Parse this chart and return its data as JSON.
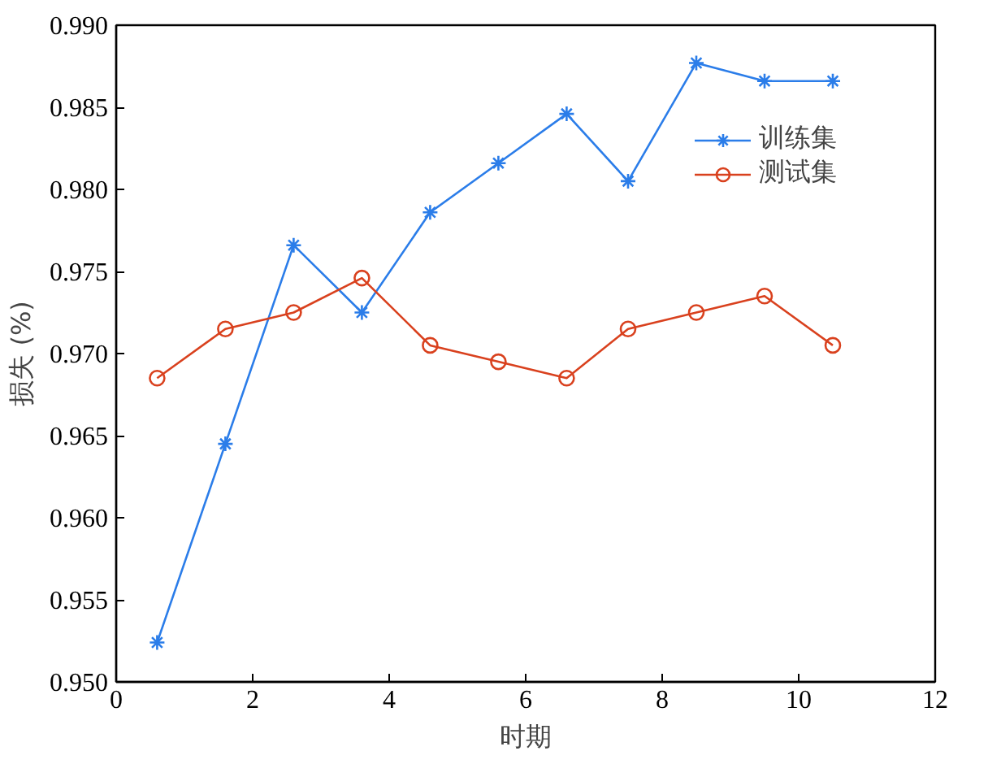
{
  "chart_data": {
    "type": "line",
    "xlabel": "时期",
    "ylabel": "损失 (%)",
    "x": [
      0.6,
      1.6,
      2.6,
      3.6,
      4.6,
      5.6,
      6.6,
      7.5,
      8.5,
      9.5,
      10.5
    ],
    "series": [
      {
        "name": "训练集",
        "color": "#2b7de9",
        "marker": "cross",
        "values": [
          0.9524,
          0.9645,
          0.9766,
          0.9725,
          0.9786,
          0.9816,
          0.9846,
          0.9805,
          0.9877,
          0.9866,
          0.9866
        ]
      },
      {
        "name": "测试集",
        "color": "#d9411e",
        "marker": "circle",
        "values": [
          0.9685,
          0.9715,
          0.9725,
          0.9746,
          0.9705,
          0.9695,
          0.9685,
          0.9715,
          0.9725,
          0.9735,
          0.9705
        ]
      }
    ],
    "xlim": [
      0,
      12
    ],
    "xticks": [
      0,
      2,
      4,
      6,
      8,
      10,
      12
    ],
    "ylim": [
      0.95,
      0.99
    ],
    "yticks": [
      {
        "value": 0.95,
        "label": "0.950"
      },
      {
        "value": 0.955,
        "label": "0.955"
      },
      {
        "value": 0.96,
        "label": "0.960"
      },
      {
        "value": 0.965,
        "label": "0.965"
      },
      {
        "value": 0.97,
        "label": "0.970"
      },
      {
        "value": 0.975,
        "label": "0.975"
      },
      {
        "value": 0.98,
        "label": "0.980"
      },
      {
        "value": 0.985,
        "label": "0.985"
      },
      {
        "value": 0.99,
        "label": "0.990"
      }
    ],
    "grid": false,
    "legend": "top right",
    "line_style": "solid"
  }
}
